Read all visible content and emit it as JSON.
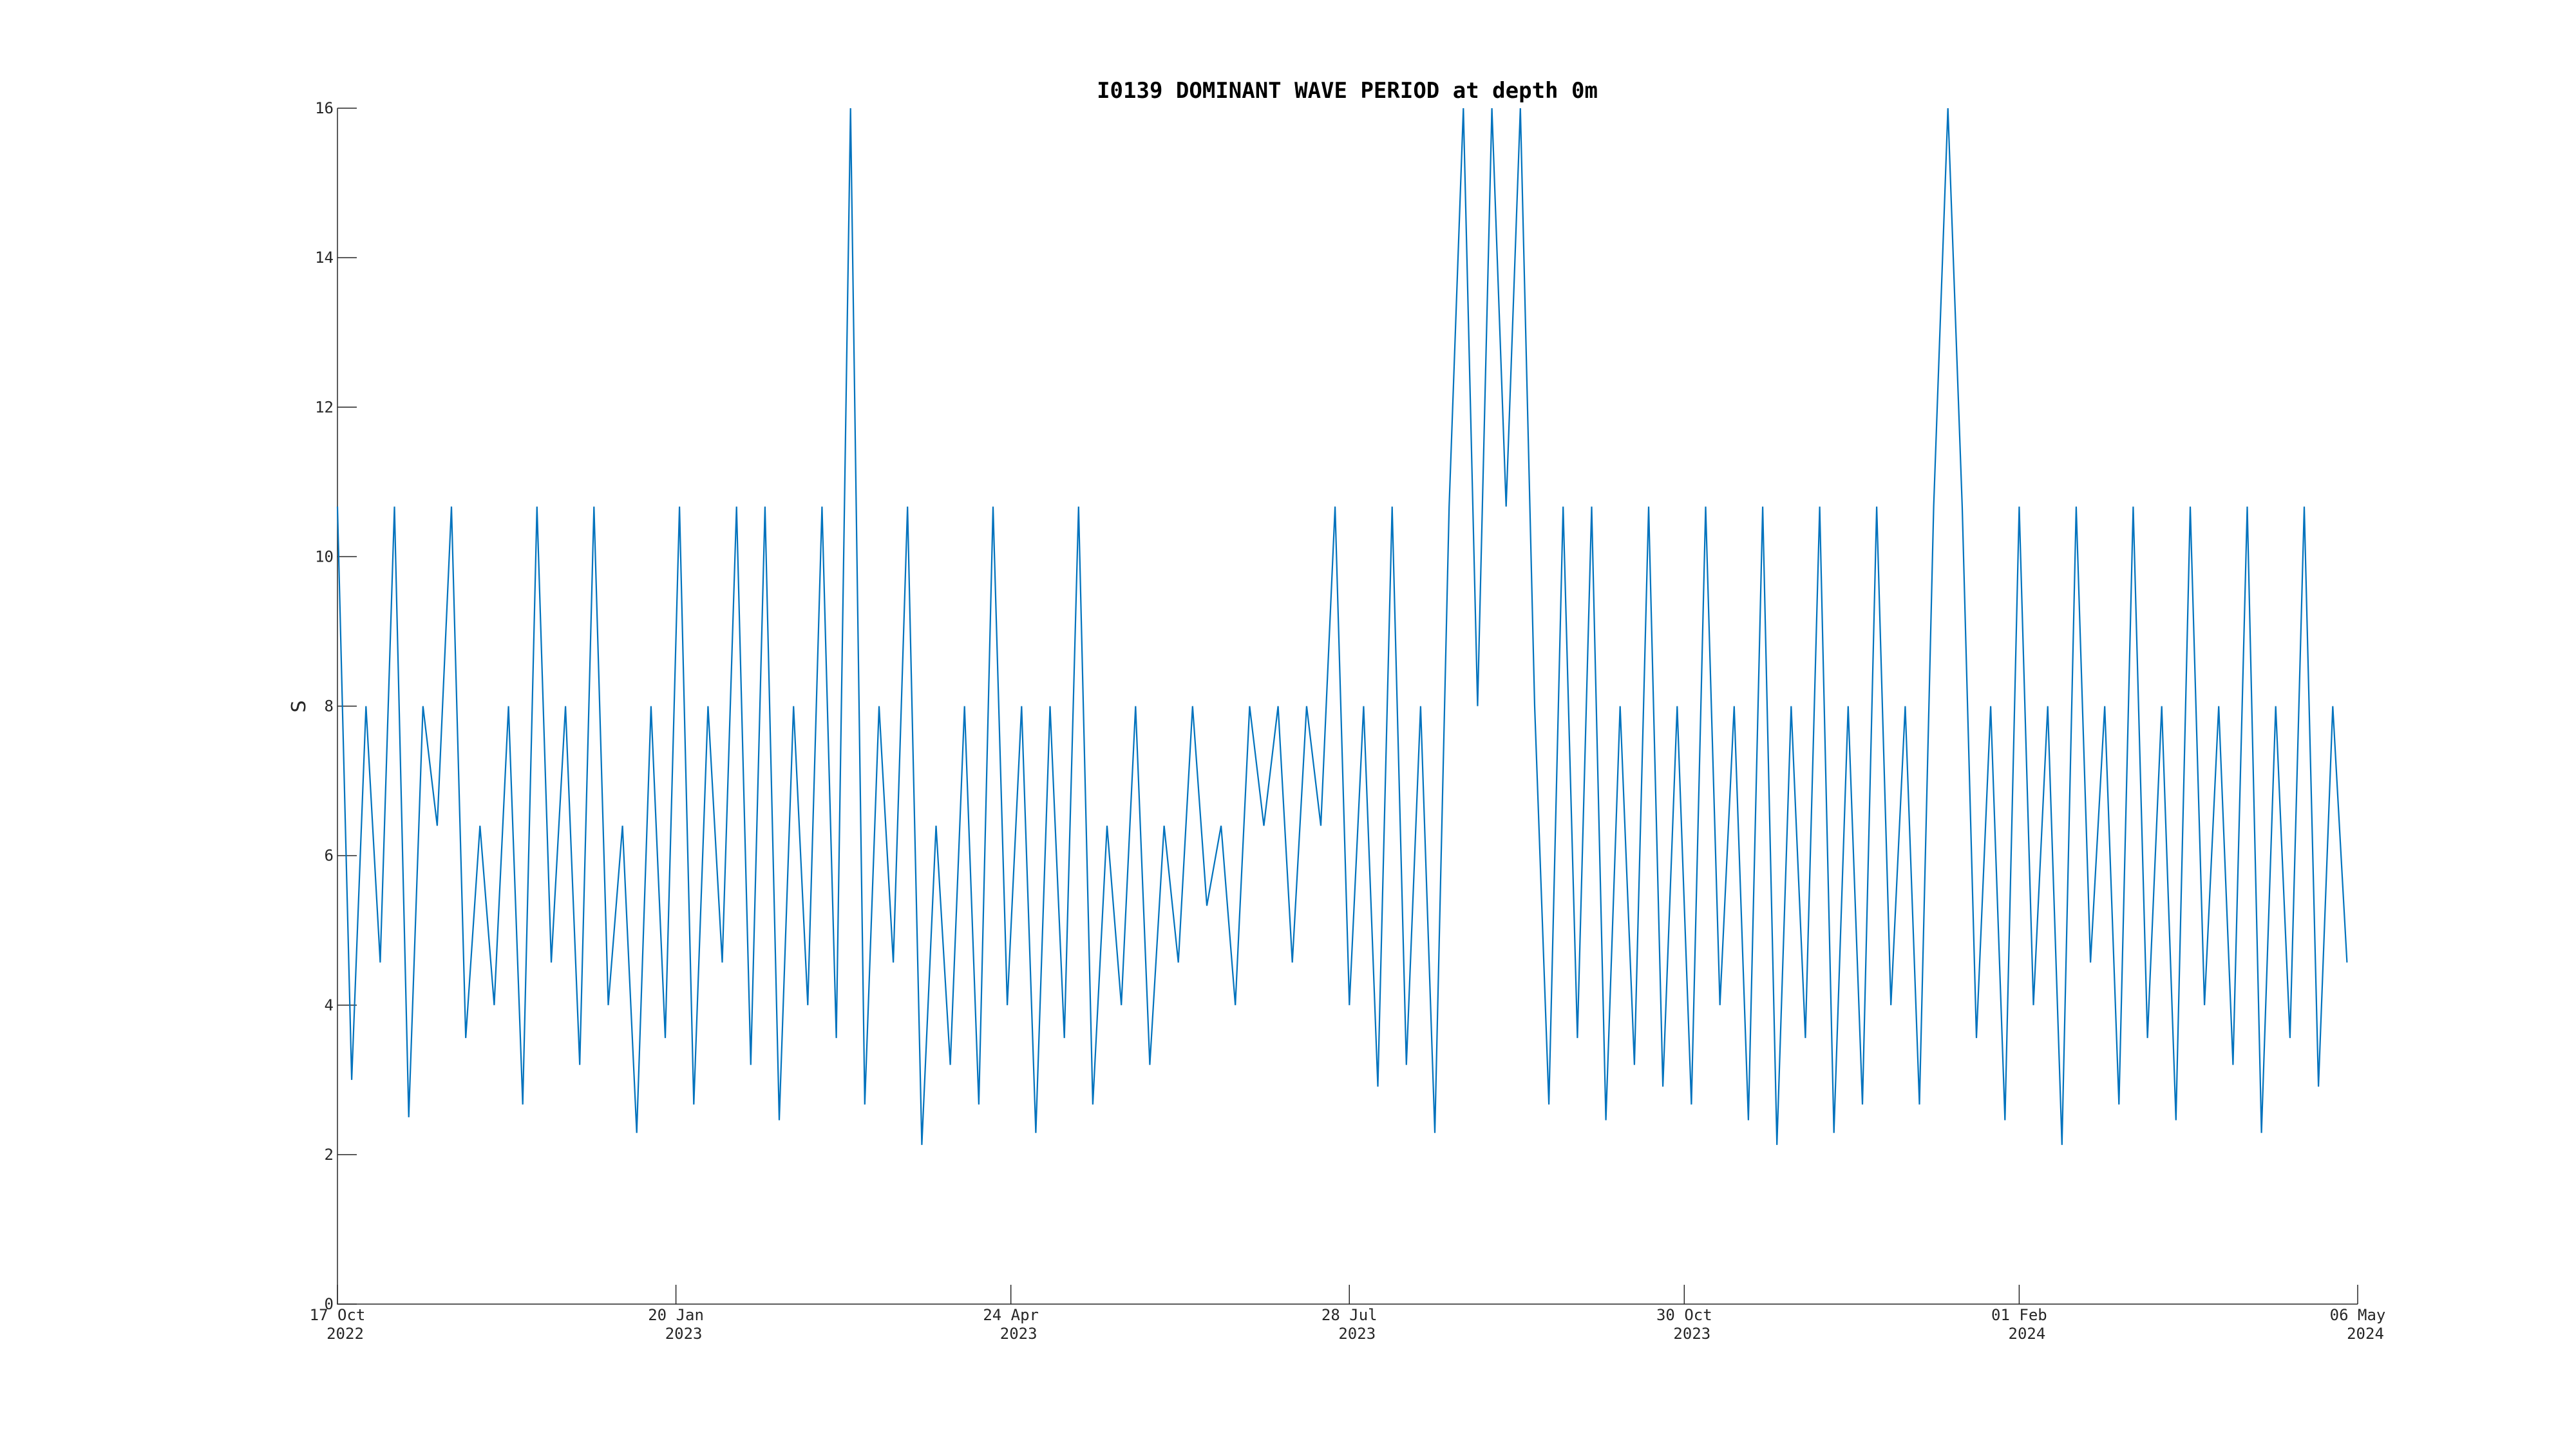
{
  "chart_data": {
    "type": "line",
    "title": "I0139 DOMINANT WAVE PERIOD at depth 0m",
    "y_label": "S",
    "color": "#0072bd",
    "x": [
      "2022-10-17",
      "2022-10-21",
      "2022-10-25",
      "2022-10-29",
      "2022-11-02",
      "2022-11-06",
      "2022-11-10",
      "2022-11-14",
      "2022-11-18",
      "2022-11-22",
      "2022-11-26",
      "2022-11-30",
      "2022-12-04",
      "2022-12-08",
      "2022-12-12",
      "2022-12-16",
      "2022-12-20",
      "2022-12-24",
      "2022-12-28",
      "2023-01-01",
      "2023-01-05",
      "2023-01-09",
      "2023-01-13",
      "2023-01-17",
      "2023-01-21",
      "2023-01-25",
      "2023-01-29",
      "2023-02-02",
      "2023-02-06",
      "2023-02-10",
      "2023-02-14",
      "2023-02-18",
      "2023-02-22",
      "2023-02-26",
      "2023-03-02",
      "2023-03-06",
      "2023-03-10",
      "2023-03-14",
      "2023-03-18",
      "2023-03-22",
      "2023-03-26",
      "2023-03-30",
      "2023-04-03",
      "2023-04-07",
      "2023-04-11",
      "2023-04-15",
      "2023-04-19",
      "2023-04-23",
      "2023-04-27",
      "2023-05-01",
      "2023-05-05",
      "2023-05-09",
      "2023-05-13",
      "2023-05-17",
      "2023-05-21",
      "2023-05-25",
      "2023-05-29",
      "2023-06-02",
      "2023-06-06",
      "2023-06-10",
      "2023-06-14",
      "2023-06-18",
      "2023-06-22",
      "2023-06-26",
      "2023-06-30",
      "2023-07-04",
      "2023-07-08",
      "2023-07-12",
      "2023-07-16",
      "2023-07-20",
      "2023-07-24",
      "2023-07-28",
      "2023-08-01",
      "2023-08-05",
      "2023-08-09",
      "2023-08-13",
      "2023-08-17",
      "2023-08-21",
      "2023-08-25",
      "2023-08-29",
      "2023-09-02",
      "2023-09-06",
      "2023-09-10",
      "2023-09-14",
      "2023-09-18",
      "2023-09-22",
      "2023-09-26",
      "2023-09-30",
      "2023-10-04",
      "2023-10-08",
      "2023-10-12",
      "2023-10-16",
      "2023-10-20",
      "2023-10-24",
      "2023-10-28",
      "2023-11-01",
      "2023-11-05",
      "2023-11-09",
      "2023-11-13",
      "2023-11-17",
      "2023-11-21",
      "2023-11-25",
      "2023-11-29",
      "2023-12-03",
      "2023-12-07",
      "2023-12-11",
      "2023-12-15",
      "2023-12-19",
      "2023-12-23",
      "2023-12-27",
      "2023-12-31",
      "2024-01-04",
      "2024-01-08",
      "2024-01-12",
      "2024-01-16",
      "2024-01-20",
      "2024-01-24",
      "2024-01-28",
      "2024-02-01",
      "2024-02-05",
      "2024-02-09",
      "2024-02-13",
      "2024-02-17",
      "2024-02-21",
      "2024-02-25",
      "2024-02-29",
      "2024-03-04",
      "2024-03-08",
      "2024-03-12",
      "2024-03-16",
      "2024-03-20",
      "2024-03-24",
      "2024-03-28",
      "2024-04-01",
      "2024-04-05",
      "2024-04-09",
      "2024-04-13",
      "2024-04-17",
      "2024-04-21",
      "2024-04-25",
      "2024-04-29",
      "2024-05-03"
    ],
    "values": [
      10.67,
      3,
      8,
      4.57,
      10.67,
      2.5,
      8,
      6.4,
      10.67,
      3.56,
      6.4,
      4,
      8,
      2.67,
      10.67,
      4.57,
      8,
      3.2,
      10.67,
      4,
      6.4,
      2.29,
      8,
      3.56,
      10.67,
      2.67,
      8,
      4.57,
      10.67,
      3.2,
      10.67,
      2.46,
      8,
      4,
      10.67,
      3.56,
      16,
      2.67,
      8,
      4.57,
      10.67,
      2.13,
      6.4,
      3.2,
      8,
      2.67,
      10.67,
      4,
      8,
      2.29,
      8,
      3.56,
      10.67,
      2.67,
      6.4,
      4,
      8,
      3.2,
      6.4,
      4.57,
      8,
      5.33,
      6.4,
      4,
      8,
      6.4,
      8,
      4.57,
      8,
      6.4,
      10.67,
      4,
      8,
      2.91,
      10.67,
      3.2,
      8,
      2.29,
      10.67,
      16,
      8,
      16,
      10.67,
      16,
      8,
      2.67,
      10.67,
      3.56,
      10.67,
      2.46,
      8,
      3.2,
      10.67,
      2.91,
      8,
      2.67,
      10.67,
      4,
      8,
      2.46,
      10.67,
      2.13,
      8,
      3.56,
      10.67,
      2.29,
      8,
      2.67,
      10.67,
      4,
      8,
      2.67,
      10.67,
      16,
      10.67,
      3.56,
      8,
      2.46,
      10.67,
      4,
      8,
      2.13,
      10.67,
      4.57,
      8,
      2.67,
      10.67,
      3.56,
      8,
      2.46,
      10.67,
      4,
      8,
      3.2,
      10.67,
      2.29,
      8,
      3.56,
      10.67,
      2.91,
      8,
      4.57
    ],
    "xlim": [
      "2022-10-17",
      "2024-05-06"
    ],
    "xticks": [
      {
        "value": "2022-10-17",
        "label": [
          "17 Oct",
          "2022"
        ]
      },
      {
        "value": "2023-01-20",
        "label": [
          "20 Jan",
          "2023"
        ]
      },
      {
        "value": "2023-04-24",
        "label": [
          "24 Apr",
          "2023"
        ]
      },
      {
        "value": "2023-07-28",
        "label": [
          "28 Jul",
          "2023"
        ]
      },
      {
        "value": "2023-10-30",
        "label": [
          "30 Oct",
          "2023"
        ]
      },
      {
        "value": "2024-02-01",
        "label": [
          "01 Feb",
          "2024"
        ]
      },
      {
        "value": "2024-05-06",
        "label": [
          "06 May",
          "2024"
        ]
      }
    ],
    "ylim": [
      0,
      16
    ],
    "yticks": [
      0,
      2,
      4,
      6,
      8,
      10,
      12,
      14,
      16
    ],
    "grid": false
  }
}
